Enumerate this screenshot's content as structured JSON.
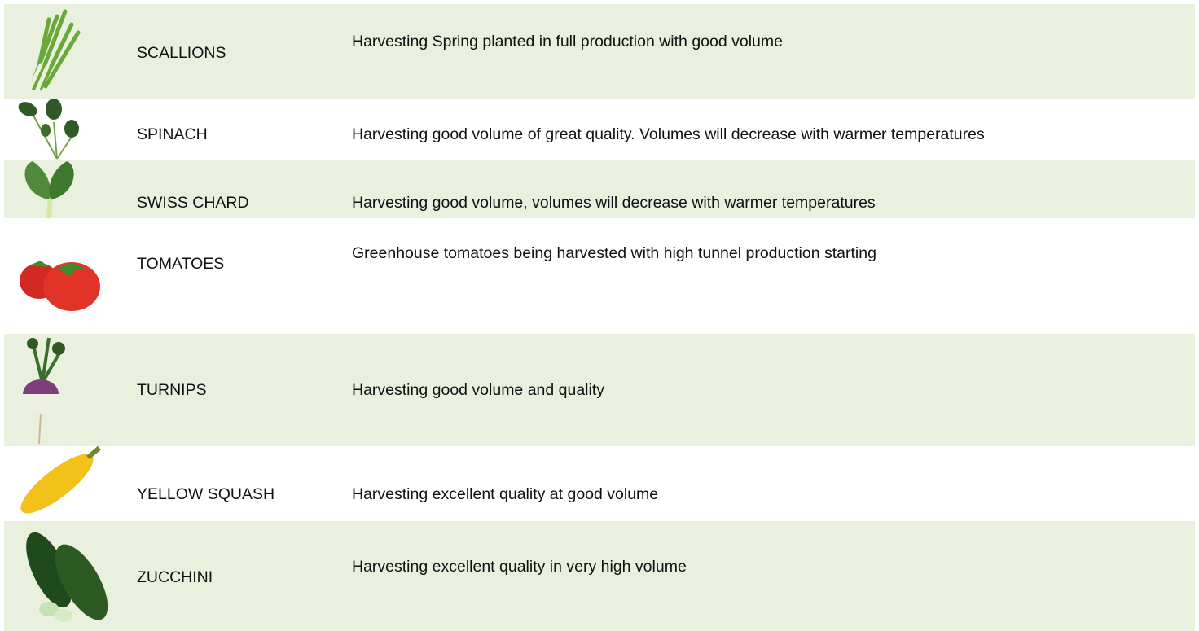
{
  "table": {
    "rows": [
      {
        "name": "SCALLIONS",
        "description": "Harvesting Spring planted in full production with good volume"
      },
      {
        "name": "SPINACH",
        "description": "Harvesting good volume of great quality. Volumes will decrease with warmer temperatures"
      },
      {
        "name": "SWISS CHARD",
        "description": "Harvesting good volume, volumes will decrease with warmer temperatures"
      },
      {
        "name": "TOMATOES",
        "description": "Greenhouse tomatoes being harvested with high tunnel production starting"
      },
      {
        "name": "TURNIPS",
        "description": "Harvesting good volume and quality"
      },
      {
        "name": "YELLOW SQUASH",
        "description": "Harvesting excellent quality at good volume"
      },
      {
        "name": "ZUCCHINI",
        "description": "Harvesting excellent quality in very high volume"
      }
    ]
  }
}
